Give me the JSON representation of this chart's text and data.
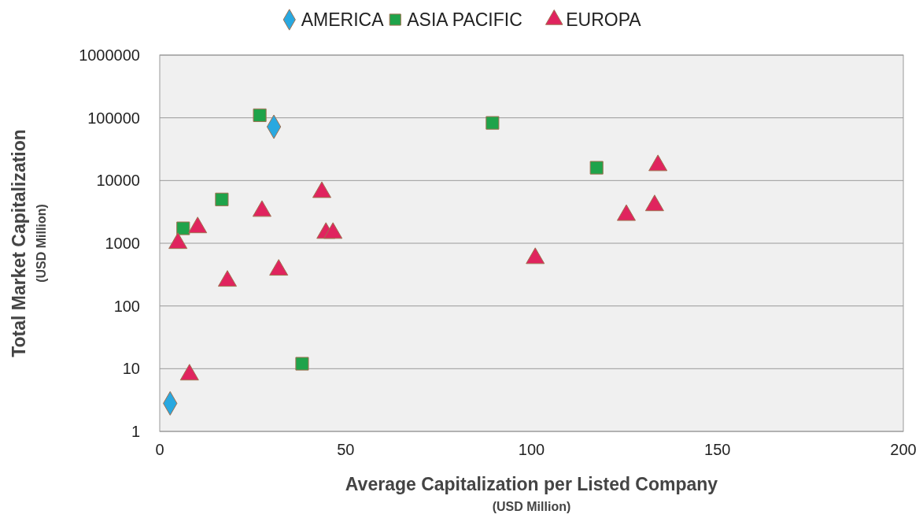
{
  "chart_data": {
    "type": "scatter",
    "xlabel": "Average Capitalization per Listed Company\n(USD Million)",
    "ylabel": "Total Market Capitalization\n(USD Million)",
    "log": "y",
    "xlim": [
      0,
      200
    ],
    "xticks": [
      0,
      50,
      100,
      150,
      200
    ],
    "ylim": [
      1,
      1000000
    ],
    "yticks": [
      1,
      10,
      100,
      1000,
      10000,
      100000,
      1000000
    ],
    "grid": "y",
    "legend": "top",
    "series": [
      {
        "name": "AMERICA",
        "color": "#29a8e0",
        "marker": "diamond",
        "x": [
          2.8,
          30.7
        ],
        "values": [
          2.8,
          72000
        ]
      },
      {
        "name": "ASIA PACIFIC",
        "color": "#1fa34a",
        "marker": "square",
        "x": [
          26.9,
          89.5,
          117.5,
          16.7,
          6.3,
          38.3
        ],
        "values": [
          110000,
          83000,
          16000,
          5000,
          1730,
          12
        ]
      },
      {
        "name": "EUROPA",
        "color": "#e0245e",
        "marker": "triangle",
        "x": [
          134,
          133.1,
          125.5,
          101,
          43.6,
          27.5,
          44.7,
          46.6,
          10.2,
          4.9,
          18.2,
          32,
          8
        ],
        "values": [
          17400,
          4000,
          2800,
          575,
          6500,
          3250,
          1450,
          1450,
          1780,
          1000,
          250,
          375,
          8
        ]
      }
    ]
  }
}
